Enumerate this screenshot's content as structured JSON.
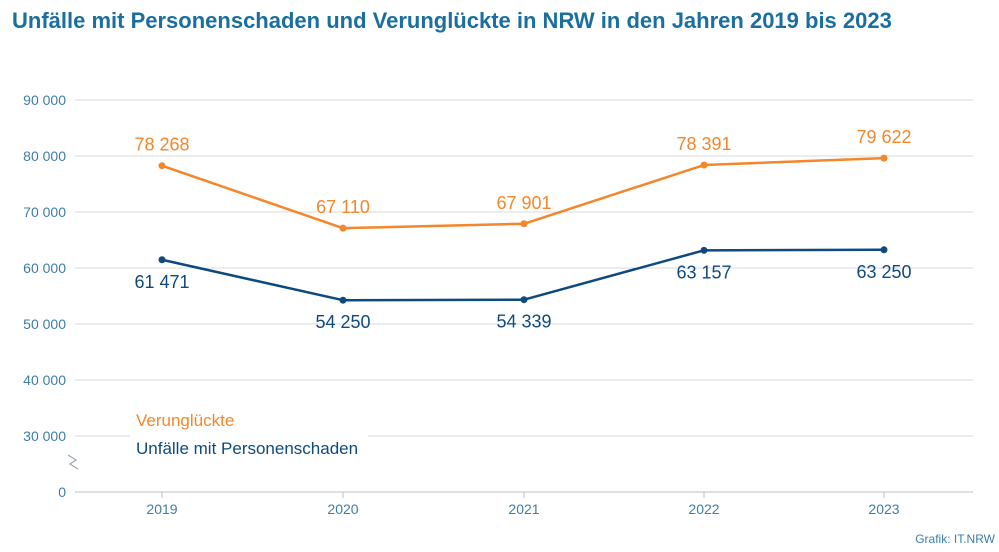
{
  "title": "Unfälle mit Personenschaden und Verunglückte in NRW in den Jahren 2019 bis 2023",
  "source": "Grafik: IT.NRW",
  "chart_data": {
    "type": "line",
    "title": "Unfälle mit Personenschaden und Verunglückte in NRW in den Jahren 2019 bis 2023",
    "x": [
      "2019",
      "2020",
      "2021",
      "2022",
      "2023"
    ],
    "y_ticks": [
      0,
      30000,
      40000,
      50000,
      60000,
      70000,
      80000,
      90000
    ],
    "y_tick_labels": [
      "0",
      "30 000",
      "40 000",
      "50 000",
      "60 000",
      "70 000",
      "80 000",
      "90 000"
    ],
    "ylim": [
      0,
      90000
    ],
    "axis_break": "between 0 and 30 000",
    "grid": true,
    "legend_position": "bottom-left",
    "series": [
      {
        "name": "Verunglückte",
        "color": "#f5862a",
        "values": [
          78268,
          67110,
          67901,
          78391,
          79622
        ],
        "labels": [
          "78 268",
          "67 110",
          "67 901",
          "78 391",
          "79 622"
        ]
      },
      {
        "name": "Unfälle mit Personenschaden",
        "color": "#0e4a7e",
        "values": [
          61471,
          54250,
          54339,
          63157,
          63250
        ],
        "labels": [
          "61 471",
          "54 250",
          "54 339",
          "63 157",
          "63 250"
        ]
      }
    ]
  }
}
